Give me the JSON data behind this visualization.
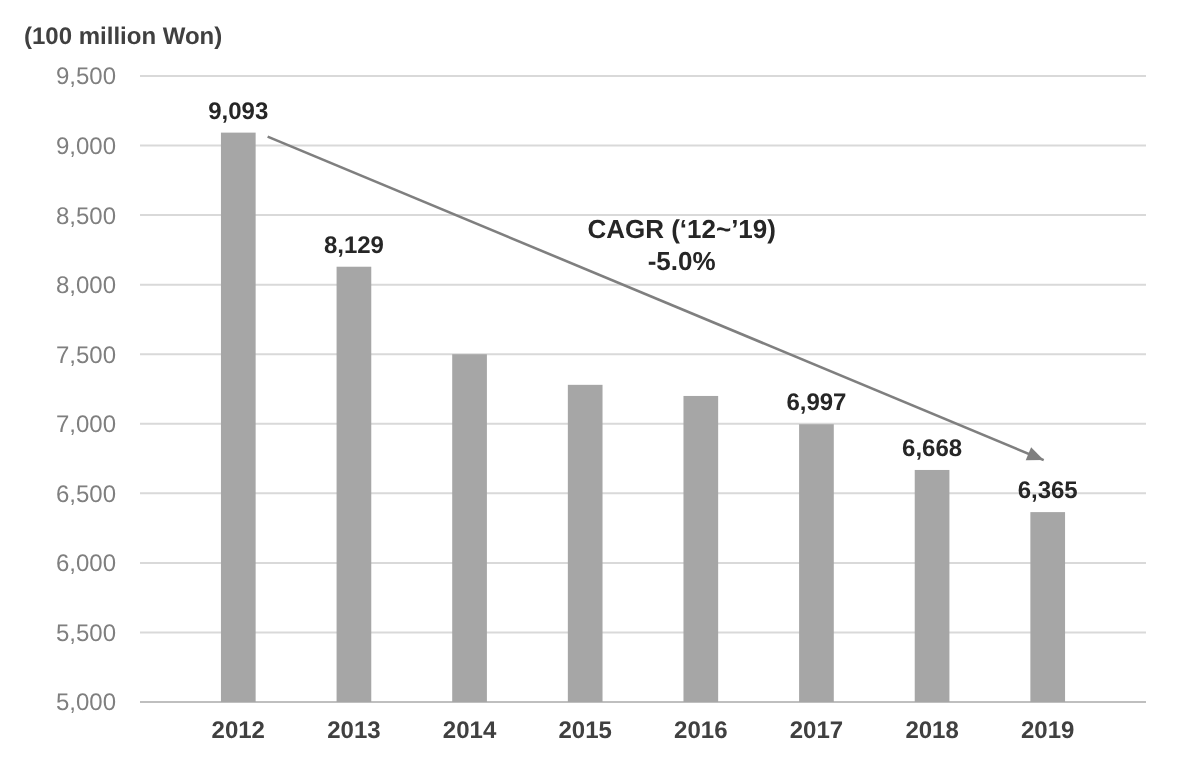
{
  "chart_data": {
    "type": "bar",
    "ylabel": "(100 million  Won)",
    "categories": [
      "2012",
      "2013",
      "2014",
      "2015",
      "2016",
      "2017",
      "2018",
      "2019"
    ],
    "values": [
      9093,
      8129,
      7500,
      7280,
      7200,
      6997,
      6668,
      6365
    ],
    "value_labels": [
      "9,093",
      "8,129",
      null,
      null,
      null,
      "6,997",
      "6,668",
      "6,365"
    ],
    "color": "#a6a6a6",
    "ylim": [
      5000,
      9500
    ],
    "yticks": [
      {
        "value": 5000,
        "label": "5,000"
      },
      {
        "value": 5500,
        "label": "5,500"
      },
      {
        "value": 6000,
        "label": "6,000"
      },
      {
        "value": 6500,
        "label": "6,500"
      },
      {
        "value": 7000,
        "label": "7,000"
      },
      {
        "value": 7500,
        "label": "7,500"
      },
      {
        "value": 8000,
        "label": "8,000"
      },
      {
        "value": 8500,
        "label": "8,500"
      },
      {
        "value": 9000,
        "label": "9,000"
      },
      {
        "value": 9500,
        "label": "9,500"
      }
    ],
    "grid": "y",
    "annotations": [
      "CAGR (‘12~’19)",
      "-5.0%"
    ]
  }
}
